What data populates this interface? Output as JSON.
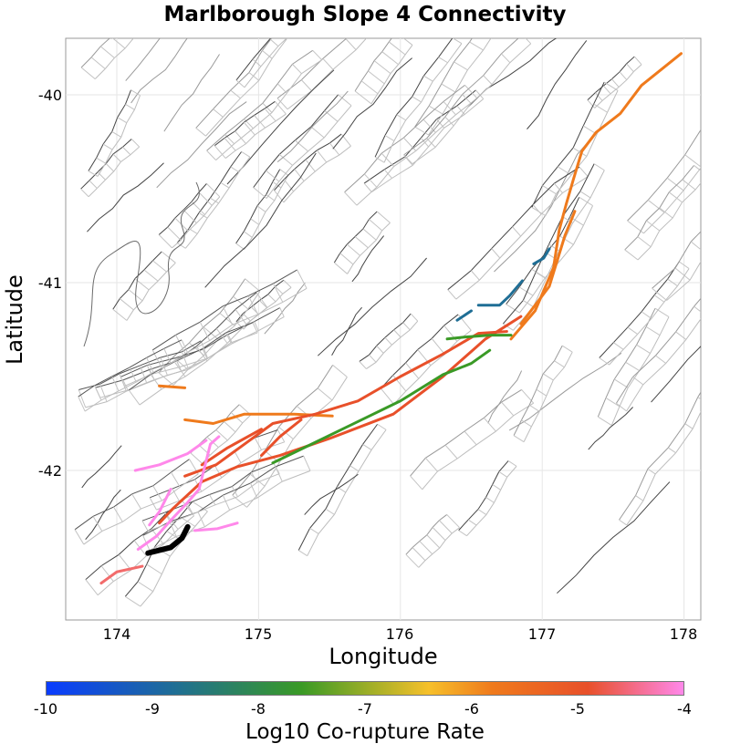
{
  "chart_data": {
    "type": "map",
    "title": "Marlborough Slope 4 Connectivity",
    "xlabel": "Longitude",
    "ylabel": "Latitude",
    "xlim": [
      173.6,
      178.1
    ],
    "ylim": [
      -42.8,
      -39.7
    ],
    "xticks": [
      "174",
      "175",
      "176",
      "177",
      "178"
    ],
    "xtick_values": [
      174,
      175,
      176,
      177,
      178
    ],
    "yticks": [
      "-40",
      "-41",
      "-42"
    ],
    "ytick_values": [
      -40,
      -41,
      -42
    ],
    "colorbar": {
      "label": "Log10 Co-rupture Rate",
      "range": [
        -10,
        -4
      ],
      "ticks": [
        "-10",
        "-9",
        "-8",
        "-7",
        "-6",
        "-5",
        "-4"
      ],
      "colors": [
        "#0a3cff",
        "#1f6e95",
        "#3a9a26",
        "#f6c02a",
        "#ef7a1c",
        "#e8502a",
        "#ff88ea"
      ]
    },
    "highlighted_ruptures": [
      {
        "name": "source-section",
        "color": "#000000",
        "coords": [
          [
            174.22,
            -42.44
          ],
          [
            174.38,
            -42.41
          ],
          [
            174.46,
            -42.36
          ],
          [
            174.5,
            -42.3
          ]
        ]
      },
      {
        "name": "orange-coast-long",
        "color": "#ef7a1c",
        "coords": [
          [
            176.78,
            -41.3
          ],
          [
            176.95,
            -41.15
          ],
          [
            177.08,
            -40.92
          ],
          [
            177.12,
            -40.72
          ],
          [
            177.17,
            -40.58
          ],
          [
            177.22,
            -40.45
          ],
          [
            177.28,
            -40.3
          ],
          [
            177.38,
            -40.2
          ],
          [
            177.55,
            -40.1
          ],
          [
            177.7,
            -39.95
          ],
          [
            177.98,
            -39.78
          ]
        ]
      },
      {
        "name": "orange-coast-short",
        "color": "#ef7a1c",
        "coords": [
          [
            176.85,
            -41.22
          ],
          [
            177.05,
            -41.02
          ],
          [
            177.16,
            -40.75
          ],
          [
            177.23,
            -40.62
          ]
        ]
      },
      {
        "name": "orange-west-1",
        "color": "#ef7a1c",
        "coords": [
          [
            174.48,
            -41.73
          ],
          [
            174.68,
            -41.75
          ],
          [
            174.9,
            -41.7
          ],
          [
            175.25,
            -41.7
          ],
          [
            175.52,
            -41.71
          ]
        ]
      },
      {
        "name": "orange-west-2",
        "color": "#ef7a1c",
        "coords": [
          [
            174.3,
            -41.55
          ],
          [
            174.48,
            -41.56
          ]
        ]
      },
      {
        "name": "red-east-1",
        "color": "#e8502a",
        "coords": [
          [
            174.3,
            -42.28
          ],
          [
            174.4,
            -42.2
          ],
          [
            174.6,
            -42.06
          ],
          [
            174.85,
            -41.98
          ],
          [
            175.15,
            -41.92
          ],
          [
            175.5,
            -41.83
          ],
          [
            175.95,
            -41.7
          ],
          [
            176.3,
            -41.5
          ],
          [
            176.6,
            -41.3
          ],
          [
            176.85,
            -41.18
          ]
        ]
      },
      {
        "name": "red-east-2",
        "color": "#e8502a",
        "coords": [
          [
            174.48,
            -42.03
          ],
          [
            174.7,
            -41.97
          ],
          [
            174.9,
            -41.86
          ],
          [
            175.1,
            -41.75
          ],
          [
            175.4,
            -41.7
          ],
          [
            175.7,
            -41.63
          ],
          [
            176.0,
            -41.5
          ],
          [
            176.3,
            -41.38
          ],
          [
            176.55,
            -41.27
          ],
          [
            176.75,
            -41.26
          ]
        ]
      },
      {
        "name": "red-west-short",
        "color": "#e8502a",
        "coords": [
          [
            175.02,
            -41.92
          ],
          [
            175.15,
            -41.82
          ],
          [
            175.3,
            -41.73
          ]
        ]
      },
      {
        "name": "red-west-mid",
        "color": "#e8502a",
        "coords": [
          [
            174.6,
            -41.97
          ],
          [
            174.78,
            -41.88
          ],
          [
            175.02,
            -41.78
          ]
        ]
      },
      {
        "name": "salmon-southwest",
        "color": "#f26b6b",
        "coords": [
          [
            173.89,
            -42.6
          ],
          [
            174.0,
            -42.54
          ],
          [
            174.18,
            -42.51
          ]
        ]
      },
      {
        "name": "green-1",
        "color": "#3a9a26",
        "coords": [
          [
            175.1,
            -41.96
          ],
          [
            175.4,
            -41.85
          ],
          [
            175.7,
            -41.74
          ],
          [
            176.0,
            -41.63
          ],
          [
            176.3,
            -41.49
          ],
          [
            176.5,
            -41.43
          ],
          [
            176.63,
            -41.36
          ]
        ]
      },
      {
        "name": "green-2",
        "color": "#3a9a26",
        "coords": [
          [
            176.33,
            -41.3
          ],
          [
            176.45,
            -41.29
          ],
          [
            176.63,
            -41.28
          ],
          [
            176.78,
            -41.28
          ]
        ]
      },
      {
        "name": "blue-1",
        "color": "#1f6e95",
        "coords": [
          [
            176.4,
            -41.2
          ],
          [
            176.5,
            -41.15
          ]
        ]
      },
      {
        "name": "blue-2",
        "color": "#1f6e95",
        "coords": [
          [
            176.55,
            -41.12
          ],
          [
            176.7,
            -41.12
          ],
          [
            176.77,
            -41.07
          ],
          [
            176.86,
            -40.99
          ]
        ]
      },
      {
        "name": "blue-3",
        "color": "#1f6e95",
        "coords": [
          [
            176.94,
            -40.9
          ],
          [
            177.01,
            -40.87
          ],
          [
            177.05,
            -40.82
          ]
        ]
      },
      {
        "name": "pink-1",
        "color": "#ff88ea",
        "coords": [
          [
            174.15,
            -42.42
          ],
          [
            174.28,
            -42.35
          ],
          [
            174.4,
            -42.25
          ],
          [
            174.5,
            -42.17
          ],
          [
            174.58,
            -42.1
          ],
          [
            174.62,
            -41.98
          ],
          [
            174.66,
            -41.86
          ],
          [
            174.72,
            -41.82
          ]
        ]
      },
      {
        "name": "pink-2",
        "color": "#ff88ea",
        "coords": [
          [
            174.13,
            -42.0
          ],
          [
            174.3,
            -41.97
          ],
          [
            174.5,
            -41.91
          ],
          [
            174.63,
            -41.84
          ]
        ]
      },
      {
        "name": "pink-3",
        "color": "#ff88ea",
        "coords": [
          [
            174.23,
            -42.29
          ],
          [
            174.3,
            -42.22
          ],
          [
            174.38,
            -42.1
          ]
        ]
      },
      {
        "name": "pink-4",
        "color": "#ff88ea",
        "coords": [
          [
            174.55,
            -42.32
          ],
          [
            174.71,
            -42.31
          ],
          [
            174.85,
            -42.28
          ]
        ]
      }
    ]
  }
}
